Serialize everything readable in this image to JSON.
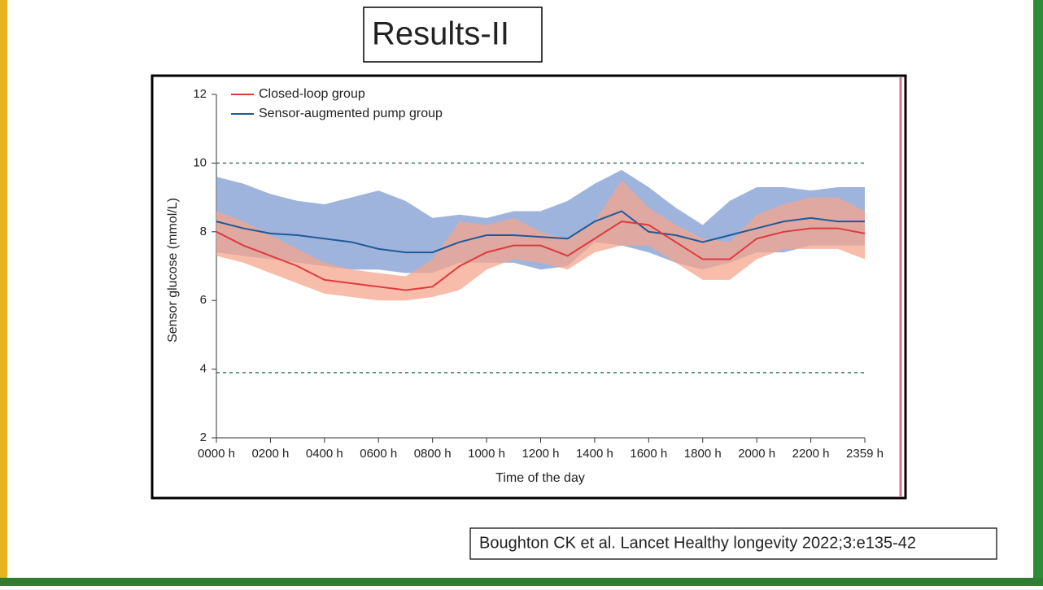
{
  "slide_title": "Results-II",
  "citation": "Boughton CK et al. Lancet Healthy longevity 2022;3:e135-42",
  "chart_data": {
    "type": "line",
    "x_label": "Time of the day",
    "y_label": "Sensor glucose (mmol/L)",
    "x": [
      0,
      1,
      2,
      3,
      4,
      5,
      6,
      7,
      8,
      9,
      10,
      11,
      12,
      13,
      14,
      15,
      16,
      17,
      18,
      19,
      20,
      21,
      22,
      23,
      24
    ],
    "xlim": [
      0,
      24
    ],
    "xticks": [
      {
        "value": 0,
        "label": "0000 h"
      },
      {
        "value": 2,
        "label": "0200 h"
      },
      {
        "value": 4,
        "label": "0400 h"
      },
      {
        "value": 6,
        "label": "0600 h"
      },
      {
        "value": 8,
        "label": "0800 h"
      },
      {
        "value": 10,
        "label": "1000 h"
      },
      {
        "value": 12,
        "label": "1200 h"
      },
      {
        "value": 14,
        "label": "1400 h"
      },
      {
        "value": 16,
        "label": "1600 h"
      },
      {
        "value": 18,
        "label": "1800 h"
      },
      {
        "value": 20,
        "label": "2000 h"
      },
      {
        "value": 22,
        "label": "2200 h"
      },
      {
        "value": 24,
        "label": "2359 h"
      }
    ],
    "ylim": [
      2,
      12
    ],
    "yticks": [
      2,
      4,
      6,
      8,
      10,
      12
    ],
    "reference_lines": [
      10,
      3.9
    ],
    "legend": "top-left",
    "series": [
      {
        "name": "Sensor-augmented pump group",
        "color": "#1f5a99",
        "band_color": "#7f9bd0",
        "values": [
          8.3,
          8.1,
          7.95,
          7.9,
          7.8,
          7.7,
          7.5,
          7.4,
          7.4,
          7.7,
          7.9,
          7.9,
          7.85,
          7.8,
          8.3,
          8.6,
          8.0,
          7.9,
          7.7,
          7.9,
          8.1,
          8.3,
          8.4,
          8.3,
          8.3
        ],
        "lower": [
          7.4,
          7.3,
          7.2,
          7.1,
          7.0,
          6.9,
          6.9,
          6.8,
          6.8,
          7.1,
          7.1,
          7.1,
          6.9,
          7.0,
          7.7,
          7.6,
          7.4,
          7.1,
          6.9,
          7.1,
          7.4,
          7.4,
          7.6,
          7.6,
          7.6
        ],
        "upper": [
          9.6,
          9.4,
          9.1,
          8.9,
          8.8,
          9.0,
          9.2,
          8.9,
          8.4,
          8.5,
          8.4,
          8.6,
          8.6,
          8.9,
          9.4,
          9.8,
          9.3,
          8.7,
          8.2,
          8.9,
          9.3,
          9.3,
          9.2,
          9.3,
          9.3
        ]
      },
      {
        "name": "Closed-loop group",
        "color": "#e0393e",
        "band_color": "#f4a58d",
        "values": [
          8.0,
          7.6,
          7.3,
          7.0,
          6.6,
          6.5,
          6.4,
          6.3,
          6.4,
          7.0,
          7.4,
          7.6,
          7.6,
          7.3,
          7.8,
          8.3,
          8.2,
          7.7,
          7.2,
          7.2,
          7.8,
          8.0,
          8.1,
          8.1,
          7.95
        ],
        "lower": [
          7.3,
          7.1,
          6.8,
          6.5,
          6.2,
          6.1,
          6.0,
          6.0,
          6.1,
          6.3,
          6.9,
          7.2,
          7.1,
          6.9,
          7.4,
          7.6,
          7.6,
          7.1,
          6.6,
          6.6,
          7.2,
          7.5,
          7.5,
          7.5,
          7.2
        ],
        "upper": [
          8.6,
          8.3,
          7.9,
          7.5,
          7.1,
          6.9,
          6.8,
          6.7,
          7.2,
          8.3,
          8.2,
          8.4,
          8.0,
          7.8,
          8.3,
          9.5,
          8.7,
          8.2,
          7.8,
          7.7,
          8.5,
          8.8,
          9.0,
          9.0,
          8.6
        ]
      }
    ]
  }
}
